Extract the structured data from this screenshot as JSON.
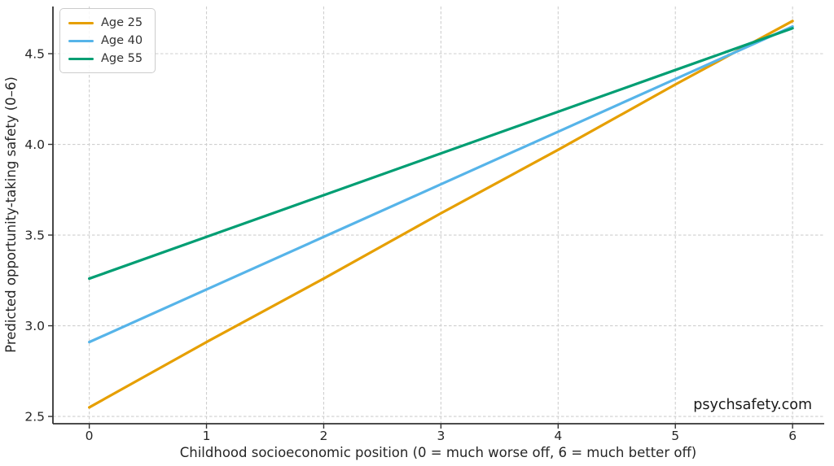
{
  "watermark": "psychsafety.com",
  "chart_data": {
    "type": "line",
    "title": "",
    "xlabel": "Childhood socioeconomic position (0 = much worse off, 6 = much better off)",
    "ylabel": "Predicted opportunity-taking safety (0–6)",
    "x": [
      0,
      1,
      2,
      3,
      4,
      5,
      6
    ],
    "series": [
      {
        "name": "Age 25",
        "color": "#E69F00",
        "values": [
          2.55,
          2.91,
          3.26,
          3.62,
          3.97,
          4.33,
          4.68
        ]
      },
      {
        "name": "Age 40",
        "color": "#56B4E9",
        "values": [
          2.91,
          3.2,
          3.49,
          3.78,
          4.07,
          4.36,
          4.65
        ]
      },
      {
        "name": "Age 55",
        "color": "#009E73",
        "values": [
          3.26,
          3.49,
          3.72,
          3.95,
          4.18,
          4.41,
          4.64
        ]
      }
    ],
    "xticks": [
      0,
      1,
      2,
      3,
      4,
      5,
      6
    ],
    "yticks": [
      2.5,
      3.0,
      3.5,
      4.0,
      4.5
    ],
    "xlim": [
      -0.31,
      6.27
    ],
    "ylim": [
      2.46,
      4.76
    ],
    "grid": true,
    "grid_style": "dashed",
    "legend_position": "upper left",
    "colors": {
      "grid": "#cfcfcf",
      "spine": "#333333",
      "tick_label": "#262626",
      "axis_label": "#262626"
    }
  }
}
